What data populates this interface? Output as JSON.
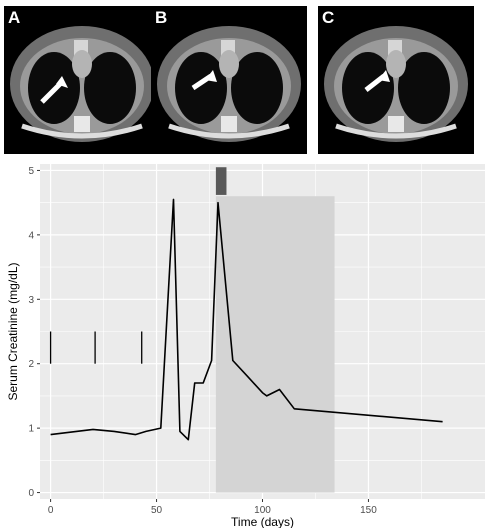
{
  "panels": [
    {
      "letter": "A",
      "icon": "ct-scan-image"
    },
    {
      "letter": "B",
      "icon": "ct-scan-image"
    },
    {
      "letter": "C",
      "icon": "ct-scan-image"
    }
  ],
  "chart_data": {
    "type": "line",
    "xlabel": "Time (days)",
    "ylabel": "Serum Creatinine (mg/dL)",
    "xlim": [
      -5,
      205
    ],
    "ylim": [
      -0.1,
      5.1
    ],
    "xticks": [
      0,
      50,
      100,
      150
    ],
    "yticks": [
      0,
      1,
      2,
      3,
      4,
      5
    ],
    "grid": true,
    "series": [
      {
        "color": "#000000",
        "x": [
          0,
          20,
          30,
          40,
          45,
          52,
          58,
          61,
          65,
          68,
          72,
          76,
          79,
          86,
          93,
          100,
          102,
          108,
          115,
          185
        ],
        "y": [
          0.9,
          0.98,
          0.95,
          0.9,
          0.95,
          1.0,
          4.55,
          0.95,
          0.82,
          1.7,
          1.7,
          2.05,
          4.5,
          2.05,
          1.8,
          1.55,
          1.5,
          1.6,
          1.3,
          1.1
        ]
      }
    ],
    "vertical_markers": [
      {
        "x": 0,
        "y_from": 2.0,
        "y_to": 2.5
      },
      {
        "x": 21,
        "y_from": 2.0,
        "y_to": 2.5
      },
      {
        "x": 43,
        "y_from": 2.0,
        "y_to": 2.5
      }
    ],
    "shaded_region": {
      "x_from": 78,
      "x_to": 134,
      "y_from": 0,
      "y_to": 4.6,
      "color": "#d4d4d4"
    },
    "dark_block": {
      "x_from": 78,
      "x_to": 83,
      "y_from": 4.62,
      "y_to": 5.05,
      "color": "#595959"
    },
    "colors": {
      "panel_background": "#ebebeb",
      "grid": "#ffffff"
    }
  }
}
